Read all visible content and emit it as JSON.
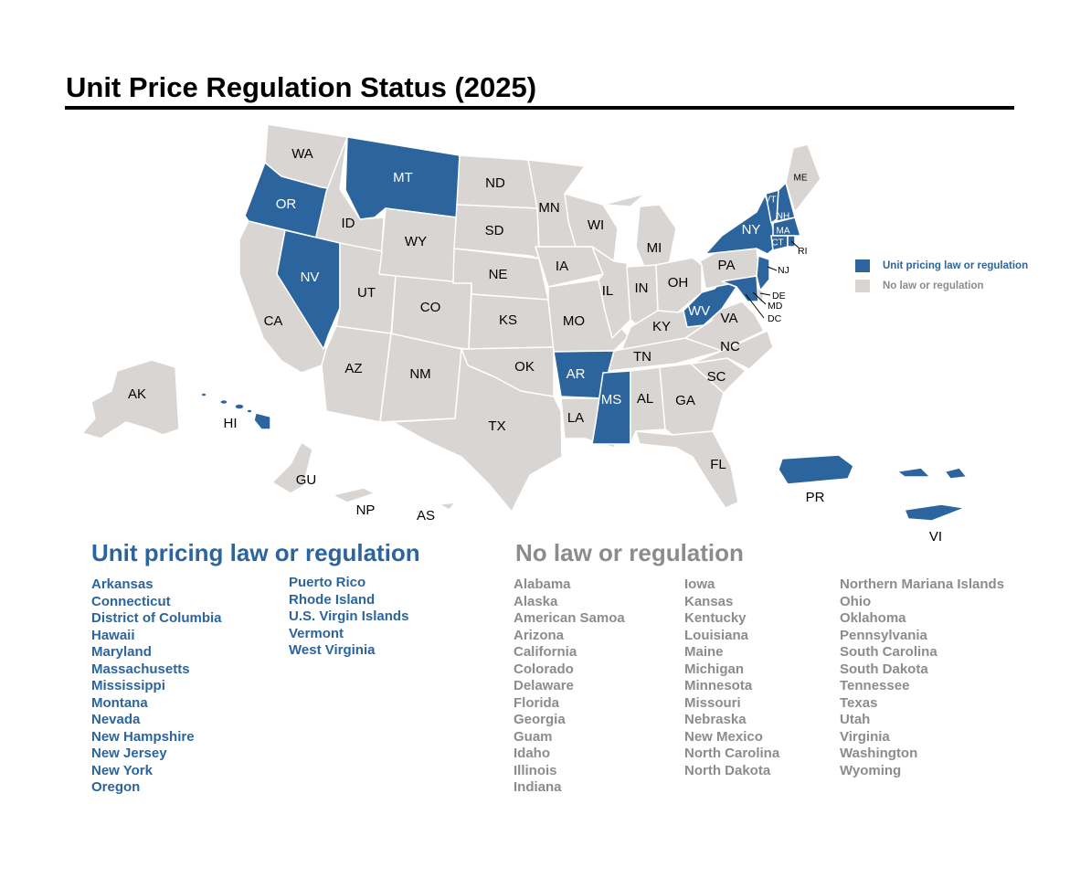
{
  "title": "Unit Price Regulation Status (2025)",
  "colors": {
    "law": "#2c659d",
    "none": "#d8d5d3",
    "law_text": "#2c659d",
    "none_text": "#8c8c8c"
  },
  "legend": {
    "law": "Unit pricing law or regulation",
    "none": "No law or regulation"
  },
  "map_labels": {
    "WA": "WA",
    "OR": "OR",
    "CA": "CA",
    "NV": "NV",
    "ID": "ID",
    "MT": "MT",
    "WY": "WY",
    "UT": "UT",
    "AZ": "AZ",
    "CO": "CO",
    "NM": "NM",
    "ND": "ND",
    "SD": "SD",
    "NE": "NE",
    "KS": "KS",
    "OK": "OK",
    "TX": "TX",
    "MN": "MN",
    "IA": "IA",
    "MO": "MO",
    "AR": "AR",
    "LA": "LA",
    "WI": "WI",
    "IL": "IL",
    "MI": "MI",
    "IN": "IN",
    "OH": "OH",
    "KY": "KY",
    "TN": "TN",
    "MS": "MS",
    "AL": "AL",
    "GA": "GA",
    "FL": "FL",
    "SC": "SC",
    "NC": "NC",
    "VA": "VA",
    "WV": "WV",
    "PA": "PA",
    "NY": "NY",
    "ME": "ME",
    "VT": "VT",
    "NH": "NH",
    "MA": "MA",
    "CT": "CT",
    "RI": "RI",
    "NJ": "NJ",
    "DE": "DE",
    "MD": "MD",
    "DC": "DC",
    "AK": "AK",
    "HI": "HI",
    "GU": "GU",
    "NP": "NP",
    "AS": "AS",
    "PR": "PR",
    "VI": "VI"
  },
  "groups": {
    "law": {
      "heading": "Unit pricing law or regulation",
      "columns": [
        [
          "Arkansas",
          "Connecticut",
          "District of Columbia",
          "Hawaii",
          "Maryland",
          "Massachusetts",
          "Mississippi",
          "Montana",
          "Nevada",
          "New Hampshire",
          "New Jersey",
          "New York",
          "Oregon"
        ],
        [
          "Puerto Rico",
          "Rhode Island",
          "U.S. Virgin Islands",
          "Vermont",
          "West Virginia"
        ]
      ]
    },
    "none": {
      "heading": "No law or regulation",
      "columns": [
        [
          "Alabama",
          "Alaska",
          "American Samoa",
          "Arizona",
          "California",
          "Colorado",
          "Delaware",
          "Florida",
          "Georgia",
          "Guam",
          "Idaho",
          "Illinois",
          "Indiana"
        ],
        [
          "Iowa",
          "Kansas",
          "Kentucky",
          "Louisiana",
          "Maine",
          "Michigan",
          "Minnesota",
          "Missouri",
          "Nebraska",
          "New Mexico",
          "North Carolina",
          "North Dakota"
        ],
        [
          "Northern Mariana Islands",
          "Ohio",
          "Oklahoma",
          "Pennsylvania",
          "South Carolina",
          "South Dakota",
          "Tennessee",
          "Texas",
          "Utah",
          "Virginia",
          "Washington",
          "Wyoming"
        ]
      ]
    }
  }
}
